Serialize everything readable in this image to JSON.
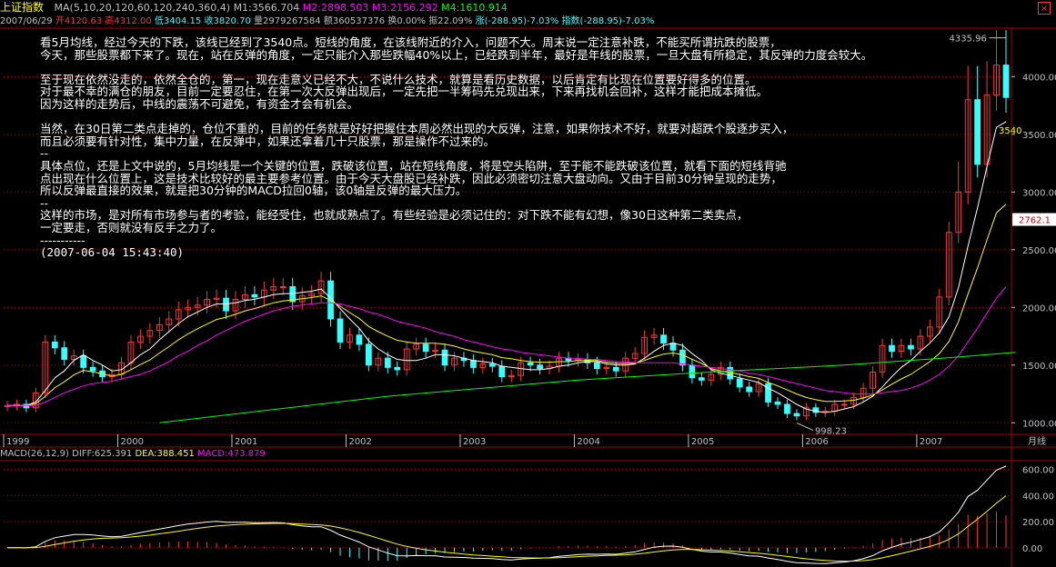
{
  "header": {
    "title": "上证指数",
    "ma_label": "MA(5,10,20,120,60,120,240,360,4)",
    "m1": "M1:3566.704",
    "m2": "M2:2898.503",
    "m3": "M3:2156.292",
    "m4": "M4:1610.914",
    "date": "2007/06/29",
    "open": "开4120.63",
    "high": "高4312.00",
    "low": "低3404.15",
    "close": "收3820.70",
    "volume": "量2979267584",
    "amount": "额360537376",
    "turnover": "换0.00%",
    "amplitude": "振22.09%",
    "change": "涨(-288.95)-7.03%",
    "index": "指数(-288.95)-7.03%"
  },
  "close_button": "×",
  "note": {
    "lines": [
      "看5月均线，经过今天的下跌，该线已经到了3540点。短线的角度，在该线附近的介入，问题不大。周末说一定注意补跌，不能买所谓抗跌的股票，",
      "今天，那些股票都下来了。现在，站在反弹的角度，一定只能介入那些跌幅40%以上，已经跌到半年，最好是年线的股票，一旦大盘有所稳定，其反弹的力度会较大。",
      "",
      "至于现在依然没走的，依然全仓的，第一，现在走意义已经不大，不说什么技术，就算是看历史数据，以后肯定有比现在位置要好得多的位置。",
      "对于最不幸的满仓的朋友，目前一定要忍住，在第一次大反弹出现后，一定先把一半筹码先兑现出来，下来再找机会回补，这样才能把成本摊低。",
      "因为这样的走势后，中线的震荡不可避免，有资金才会有机会。",
      "",
      "当然，在30日第二类点走掉的，仓位不重的，目前的任务就是好好把握住本周必然出现的大反弹，注意，如果你技术不好，就要对超跌个股逐步买入，",
      "而且必须要有针对性，集中力量，在反弹中，如果还拿着几十只股票，那是操作不过来的。",
      "--",
      "具体点位，还是上文中说的，5月均线是一个关键的位置，跌破该位置，站在短线角度，将是空头陷阱，至于能不能跌破该位置，就看下面的短线背驰",
      "点出现在什么位置上，这是技术比较好的最主要参考位置。由于今天大盘股已经补跌，因此必须密切注意大盘动向。又由于目前30分钟呈现的走势，",
      "所以反弹最直接的效果，就是把30分钟的MACD拉回0轴，该0轴是反弹的最大压力。",
      "--",
      "这样的市场，是对所有市场参与者的考验，能经受住，也就成熟点了。有些经验是必须记住的：对下跌不能有幻想，像30日这种第二类卖点，",
      "一定要走，否则就没有反手之力了。",
      "-----------",
      "(2007-06-04 15:43:40)"
    ]
  },
  "macd_header": {
    "label": "MACD(26,12,9)",
    "diff": "DIFF:625.391",
    "dea": "DEA:388.451",
    "macd": "MACD:473.879"
  },
  "period_label": "月线",
  "colors": {
    "up": "#ff3333",
    "down": "#33ffff",
    "ma5": "#ffffff",
    "ma10": "#ffff00",
    "ma20": "#ff00ff",
    "ma60": "#00ff00",
    "grid": "#aa0000",
    "axis": "#c0c0c0"
  },
  "chart_data": {
    "type": "candlestick",
    "period": "monthly",
    "x_labels": [
      "1999",
      "2000",
      "2001",
      "2002",
      "2003",
      "2004",
      "2005",
      "2006",
      "2007"
    ],
    "y_ticks": [
      1000,
      1500,
      2000,
      2500,
      3000,
      3500,
      4000
    ],
    "y_tick_labels": [
      "1000.00",
      "1500.00",
      "2000.00",
      "2500.00",
      "3000.00",
      "3500.00",
      "4000.00"
    ],
    "ylim": [
      900,
      4420
    ],
    "annotations": {
      "high": "4335.96",
      "low": "998.23",
      "last": "3540",
      "price_tag": "2762.1"
    },
    "macd": {
      "y_ticks": [
        0,
        200,
        400,
        600
      ],
      "y_tick_labels": [
        "0.00",
        "200.00",
        "400.00",
        "600.00"
      ],
      "ylim": [
        -120,
        660
      ]
    },
    "candles_year_start": 1999,
    "closes": [
      1150,
      1160,
      1130,
      1260,
      1700,
      1650,
      1550,
      1580,
      1480,
      1450,
      1400,
      1420,
      1520,
      1700,
      1750,
      1800,
      1850,
      1900,
      1980,
      2000,
      2020,
      2070,
      2080,
      1970,
      2070,
      2110,
      2090,
      2150,
      2180,
      2180,
      2050,
      2100,
      2120,
      2230,
      1900,
      1700,
      1760,
      1680,
      1500,
      1560,
      1480,
      1460,
      1640,
      1680,
      1620,
      1630,
      1500,
      1560,
      1540,
      1480,
      1510,
      1490,
      1400,
      1410,
      1520,
      1500,
      1470,
      1490,
      1560,
      1540,
      1550,
      1520,
      1470,
      1480,
      1450,
      1560,
      1600,
      1740,
      1760,
      1690,
      1630,
      1500,
      1390,
      1370,
      1420,
      1480,
      1380,
      1310,
      1270,
      1340,
      1180,
      1160,
      1080,
      1060,
      1130,
      1090,
      1100,
      1160,
      1160,
      1220,
      1300,
      1440,
      1670,
      1620,
      1670,
      1640,
      1750,
      1830,
      2090,
      2650,
      3000,
      3800,
      3240,
      3840,
      4100,
      3820
    ],
    "ma5": [
      1150,
      1150,
      1150,
      1180,
      1280,
      1390,
      1450,
      1540,
      1590,
      1540,
      1500,
      1450,
      1460,
      1520,
      1590,
      1640,
      1720,
      1790,
      1860,
      1920,
      1960,
      2000,
      2030,
      2030,
      2040,
      2060,
      2070,
      2090,
      2110,
      2120,
      2120,
      2130,
      2140,
      2160,
      2080,
      1990,
      1900,
      1820,
      1710,
      1640,
      1590,
      1550,
      1540,
      1540,
      1560,
      1590,
      1590,
      1580,
      1560,
      1540,
      1530,
      1520,
      1490,
      1480,
      1470,
      1460,
      1460,
      1470,
      1490,
      1500,
      1520,
      1530,
      1530,
      1510,
      1500,
      1500,
      1510,
      1560,
      1620,
      1670,
      1690,
      1670,
      1600,
      1540,
      1460,
      1430,
      1410,
      1390,
      1370,
      1350,
      1300,
      1260,
      1210,
      1160,
      1120,
      1100,
      1090,
      1100,
      1120,
      1140,
      1180,
      1230,
      1310,
      1400,
      1480,
      1540,
      1620,
      1690,
      1780,
      1920,
      2170,
      2530,
      2860,
      3220,
      3560,
      3610
    ],
    "ma20": [
      1150,
      1150,
      1150,
      1150,
      1180,
      1220,
      1260,
      1290,
      1320,
      1340,
      1350,
      1360,
      1380,
      1400,
      1420,
      1450,
      1490,
      1530,
      1580,
      1620,
      1670,
      1710,
      1760,
      1800,
      1840,
      1880,
      1910,
      1940,
      1970,
      1990,
      2010,
      2020,
      2030,
      2040,
      2040,
      2030,
      2010,
      1990,
      1960,
      1940,
      1910,
      1880,
      1860,
      1840,
      1820,
      1790,
      1770,
      1750,
      1720,
      1700,
      1680,
      1660,
      1640,
      1630,
      1610,
      1600,
      1590,
      1580,
      1570,
      1560,
      1560,
      1550,
      1550,
      1540,
      1530,
      1530,
      1520,
      1520,
      1520,
      1520,
      1520,
      1510,
      1500,
      1490,
      1480,
      1470,
      1460,
      1450,
      1430,
      1420,
      1400,
      1380,
      1360,
      1340,
      1320,
      1300,
      1280,
      1270,
      1260,
      1250,
      1250,
      1250,
      1260,
      1270,
      1280,
      1300,
      1330,
      1370,
      1420,
      1490,
      1580,
      1700,
      1820,
      1950,
      2080,
      2180
    ],
    "ma60_points": [
      [
        16,
        1000
      ],
      [
        40,
        1230
      ],
      [
        60,
        1370
      ],
      [
        74,
        1440
      ],
      [
        88,
        1500
      ],
      [
        100,
        1570
      ],
      [
        106,
        1610
      ]
    ]
  }
}
